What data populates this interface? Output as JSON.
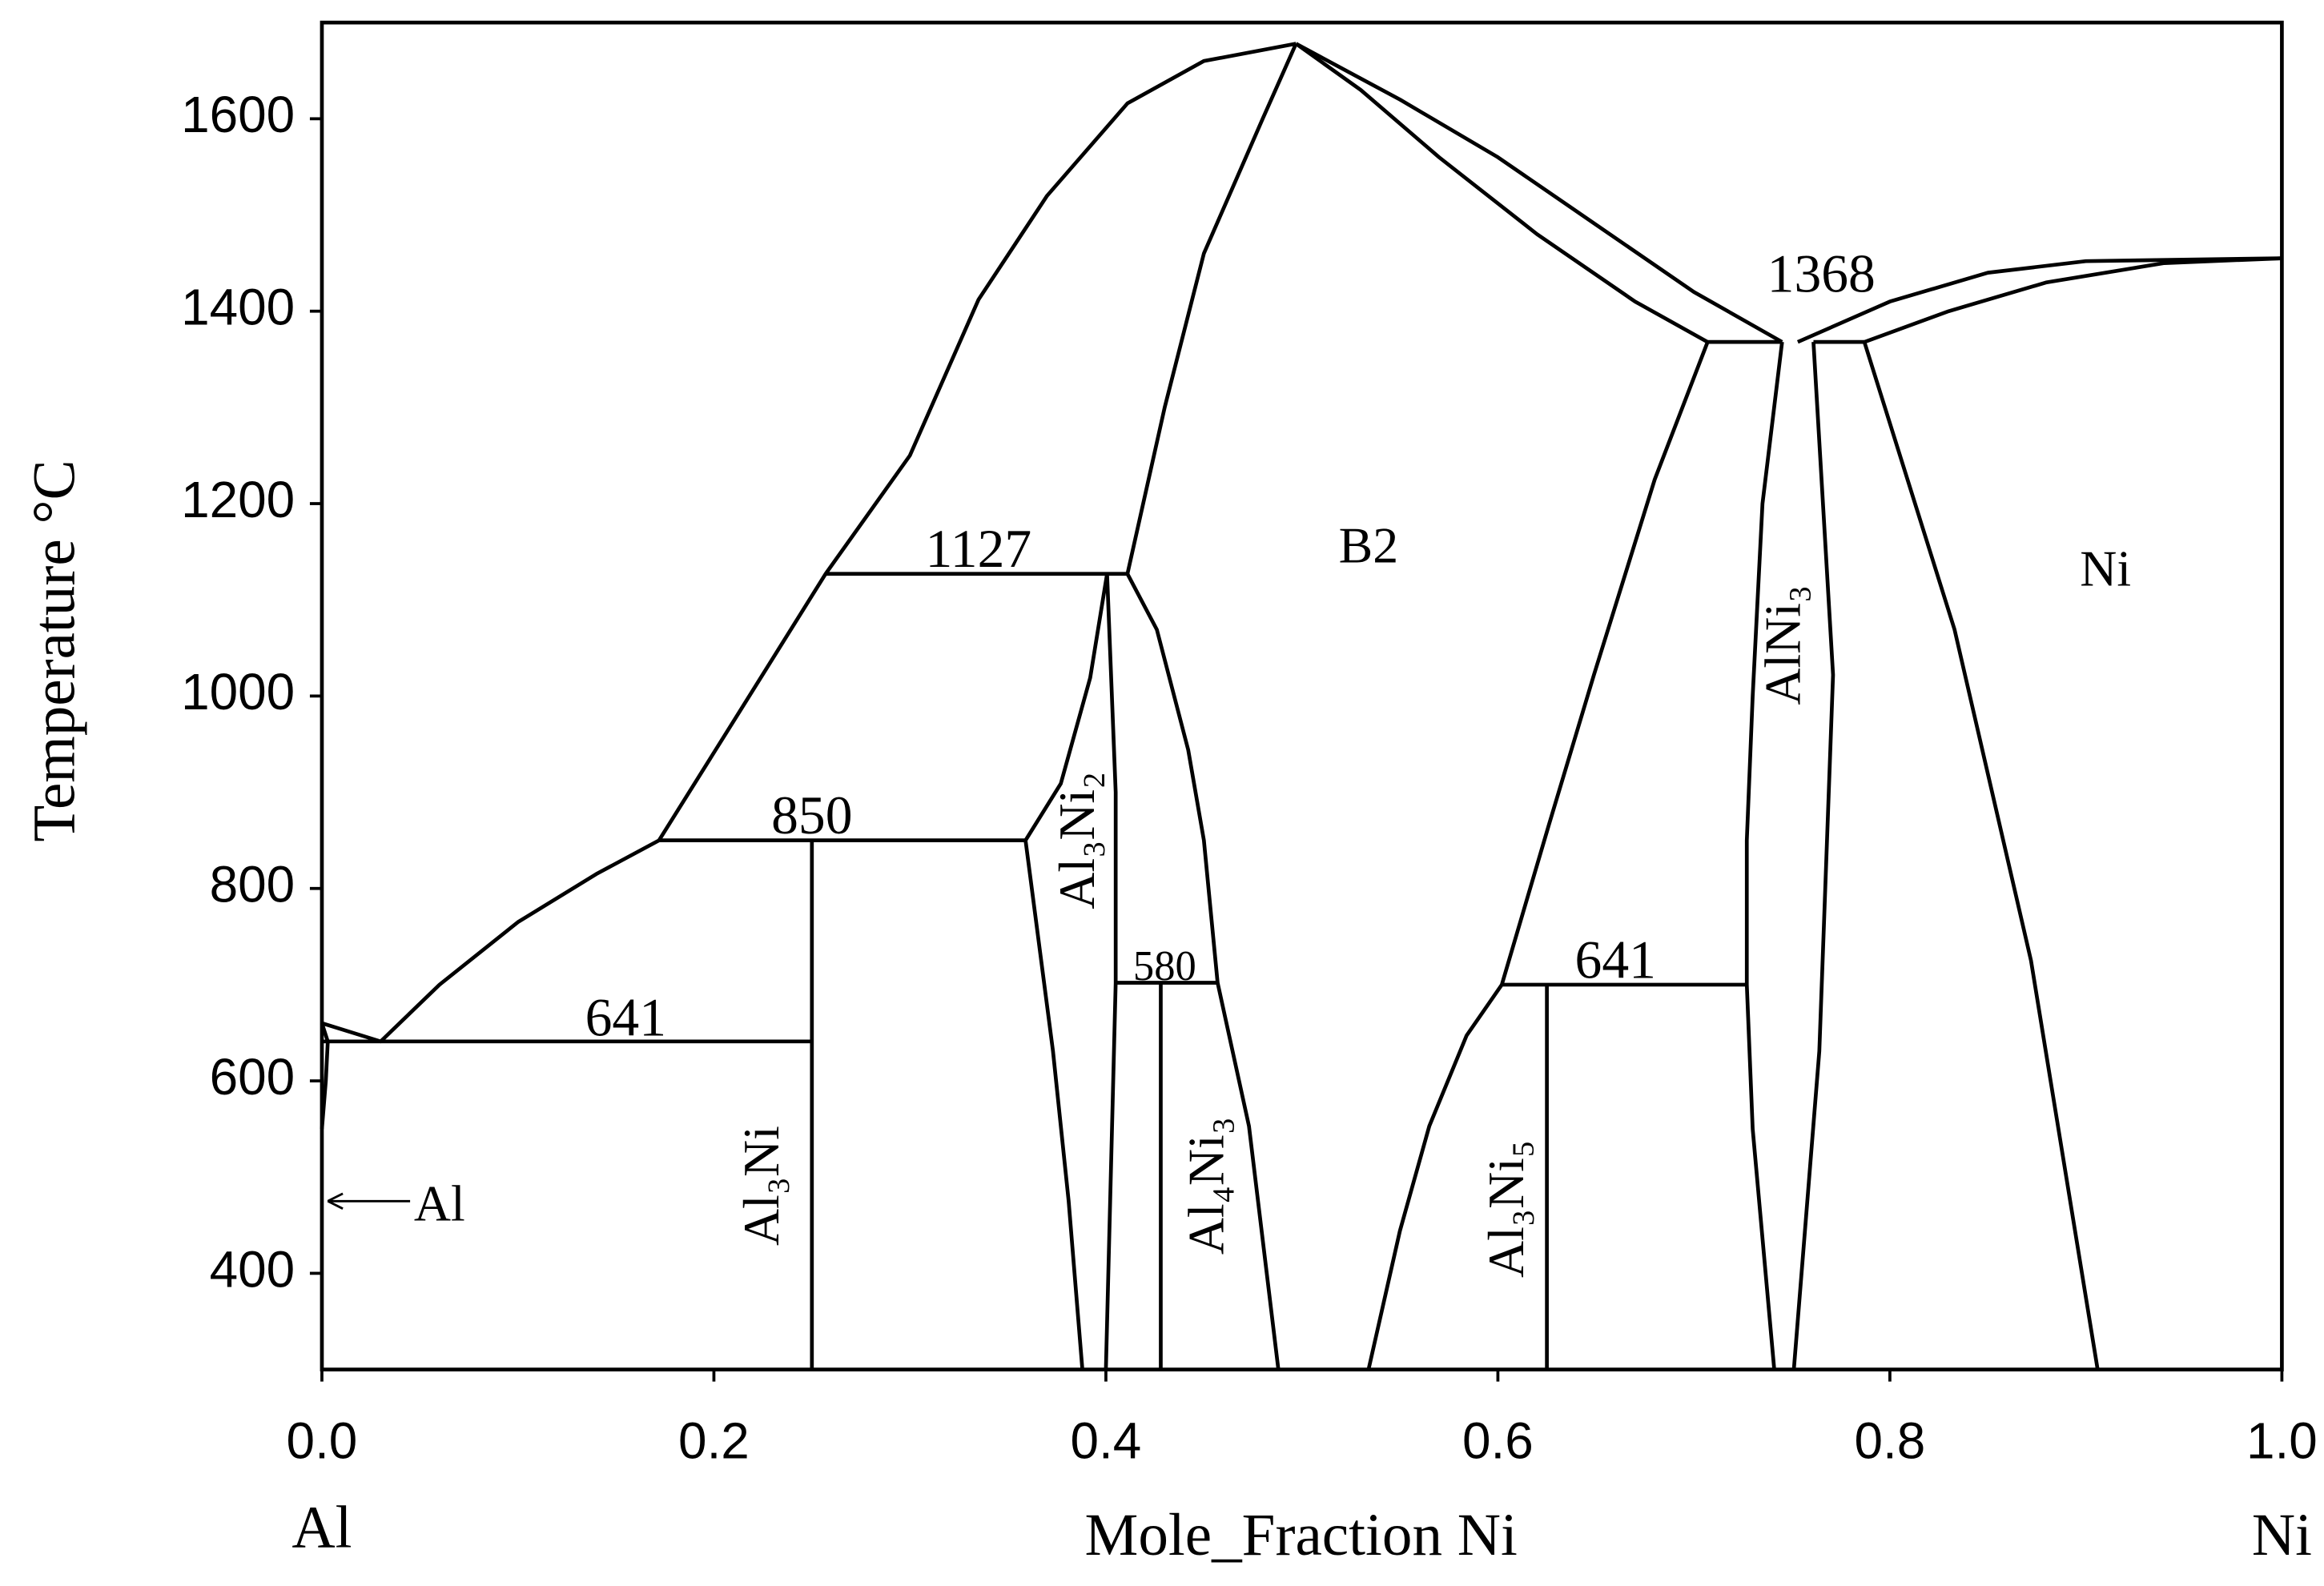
{
  "chart_data": {
    "type": "line",
    "xlabel": "Mole_Fraction Ni",
    "ylabel": "Temperature °C",
    "component_labels": [
      "Al",
      "Ni"
    ],
    "labels": [
      "1127",
      "850",
      "641",
      "580",
      "641",
      "1368",
      "B2",
      "Ni",
      "AlNi₃",
      "Al₃Ni₂",
      "Al₃Ni",
      "Al₄Ni₃",
      "Al₃Ni₅",
      "Al"
    ],
    "xlim": [
      0,
      1
    ],
    "ylim": [
      300,
      1700
    ],
    "xticks": [
      {
        "value": 0,
        "label": "0.0"
      },
      0.2,
      0.4,
      0.6,
      0.8,
      {
        "value": 1,
        "label": "1.0"
      }
    ],
    "yticks": [
      400,
      600,
      800,
      1000,
      1200,
      1400,
      1600
    ],
    "color": "#000000",
    "series": [
      {
        "x": [
          0,
          0.03,
          0.06,
          0.1,
          0.14,
          0.172,
          0.215,
          0.257,
          0.3,
          0.335,
          0.37,
          0.411,
          0.45,
          0.497
        ],
        "values": [
          660,
          641,
          700,
          765,
          815,
          850,
          990,
          1127,
          1250,
          1412,
          1520,
          1616,
          1660,
          1678
        ]
      },
      {
        "x": [
          0,
          0.003,
          0.002,
          0
        ],
        "values": [
          660,
          641,
          600,
          550
        ]
      },
      {
        "x": [
          0,
          0.25
        ],
        "values": [
          641,
          641
        ]
      },
      {
        "x": [
          0.172,
          0.359
        ],
        "values": [
          850,
          850
        ]
      },
      {
        "x": [
          0.257,
          0.411
        ],
        "values": [
          1127,
          1127
        ]
      },
      {
        "x": [
          0.25,
          0.25
        ],
        "values": [
          850,
          300
        ]
      },
      {
        "x": [
          0.4006,
          0.392,
          0.377,
          0.359,
          0.373,
          0.381,
          0.388
        ],
        "values": [
          1127,
          1019,
          909,
          850,
          631,
          475,
          300
        ]
      },
      {
        "x": [
          0.4006,
          0.405,
          0.405,
          0.4
        ],
        "values": [
          1127,
          900,
          702,
          300
        ]
      },
      {
        "x": [
          0.497,
          0.48,
          0.45,
          0.43,
          0.411
        ],
        "values": [
          1678,
          1600,
          1460,
          1300,
          1127
        ]
      },
      {
        "x": [
          0.411,
          0.426,
          0.442,
          0.45,
          0.457,
          0.473,
          0.488
        ],
        "values": [
          1127,
          1069,
          944,
          850,
          702,
          553,
          300
        ]
      },
      {
        "x": [
          0.405,
          0.457
        ],
        "values": [
          702,
          702
        ]
      },
      {
        "x": [
          0.428,
          0.428
        ],
        "values": [
          702,
          300
        ]
      },
      {
        "x": [
          0.497,
          0.55,
          0.6,
          0.65,
          0.7,
          0.745
        ],
        "values": [
          1678,
          1620,
          1560,
          1490,
          1420,
          1368
        ]
      },
      {
        "x": [
          0.497,
          0.53,
          0.57,
          0.62,
          0.67,
          0.707
        ],
        "values": [
          1678,
          1630,
          1560,
          1480,
          1410,
          1368
        ]
      },
      {
        "x": [
          0.707,
          0.745
        ],
        "values": [
          1368,
          1368
        ]
      },
      {
        "x": [
          0.707,
          0.68,
          0.649,
          0.626,
          0.602,
          0.584,
          0.565,
          0.55,
          0.534
        ],
        "values": [
          1368,
          1225,
          1022,
          866,
          700,
          647,
          553,
          444,
          300
        ]
      },
      {
        "x": [
          0.602,
          0.727
        ],
        "values": [
          700,
          700
        ]
      },
      {
        "x": [
          0.625,
          0.625
        ],
        "values": [
          700,
          300
        ]
      },
      {
        "x": [
          0.745,
          0.735,
          0.73,
          0.727,
          0.727,
          0.73,
          0.741
        ],
        "values": [
          1368,
          1200,
          1000,
          850,
          700,
          550,
          300
        ]
      },
      {
        "x": [
          0.761,
          0.771,
          0.764,
          0.751
        ],
        "values": [
          1368,
          1022,
          631,
          300
        ]
      },
      {
        "x": [
          0.761,
          0.787
        ],
        "values": [
          1368,
          1368
        ]
      },
      {
        "x": [
          0.753,
          0.8,
          0.85,
          0.9,
          1
        ],
        "values": [
          1368,
          1410,
          1440,
          1452,
          1455
        ]
      },
      {
        "x": [
          0.787,
          0.83,
          0.88,
          0.94,
          1
        ],
        "values": [
          1368,
          1400,
          1430,
          1450,
          1455
        ]
      },
      {
        "x": [
          0.787,
          0.833,
          0.872,
          0.906
        ],
        "values": [
          1368,
          1069,
          725,
          300
        ]
      }
    ]
  }
}
